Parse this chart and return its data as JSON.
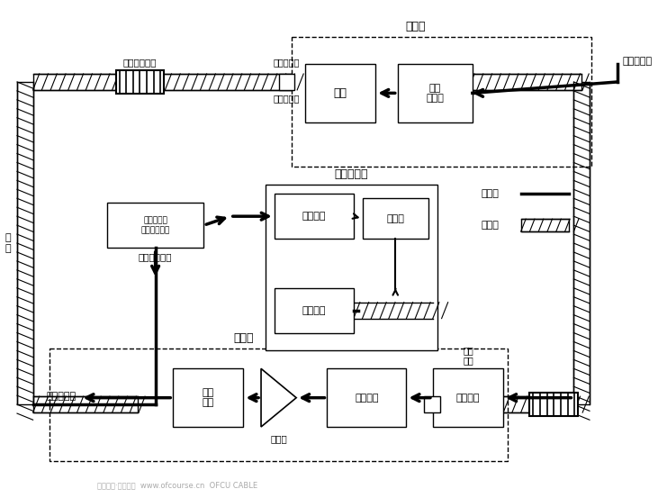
{
  "bg_color": "#ffffff",
  "sections": {
    "transmitter_label": "发端机",
    "repeater_label": "再生中继器",
    "receiver_label": "接收端"
  },
  "legend": {
    "elec_label": "电信号",
    "opt_label": "光信号"
  },
  "texts": {
    "fiber_amp_top": "光纤放大器盒",
    "fiber_connector_top": "光纤接头器",
    "fiber_connector_label": "光纤接头器",
    "elec_input": "电信号输入",
    "light_source": "光源",
    "elec_driver": "电流\n驱动器",
    "opt_detector": "光检波器",
    "elec_regen": "电再生",
    "opt_emitter": "光发射器",
    "coupler": "光纤耦合器\n分路器合波器",
    "maintenance": "检测维护备份",
    "opt_amp": "光放大器",
    "opt_receiver": "光接收器",
    "amplifier": "放大器",
    "signal_id": "信号\n识别",
    "elec_output": "电信号输出",
    "opt_coupler_rx": "光纤\n耦频",
    "cable_label": "光\n缆"
  }
}
